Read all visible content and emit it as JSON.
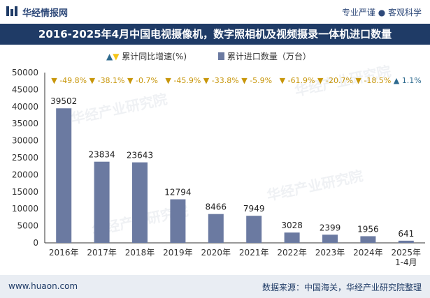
{
  "header": {
    "brand": "华经情报网",
    "slogan": "专业严谨 ● 客观科学"
  },
  "title": "2016-2025年4月中国电视摄像机，数字照相机及视频摄录一体机进口数量",
  "legend": {
    "growth_label": "累计同比增速(%)",
    "quantity_label": "累计进口数量（万台）"
  },
  "footer": {
    "website": "www.huaon.com",
    "source": "数据来源：中国海关，华经产业研究院整理"
  },
  "watermark": "华经产业研究院",
  "colors": {
    "bar": "#6b7aa1",
    "title_bg": "#1f3b66",
    "down_marker": "#f5c518",
    "up_marker": "#2f6b8f",
    "growth_text": "#c8960a",
    "up_text": "#2f6b8f"
  },
  "chart_data": {
    "type": "bar",
    "categories": [
      "2016年",
      "2017年",
      "2018年",
      "2019年",
      "2020年",
      "2021年",
      "2022年",
      "2023年",
      "2024年",
      "2025年\n1-4月"
    ],
    "series": [
      {
        "name": "累计进口数量（万台）",
        "values": [
          39502,
          23834,
          23643,
          12794,
          8466,
          7949,
          3028,
          2399,
          1956,
          641
        ]
      },
      {
        "name": "累计同比增速(%)",
        "values": [
          -49.8,
          -38.1,
          -0.7,
          -45.9,
          -33.8,
          -5.9,
          -61.9,
          -20.7,
          -18.5,
          1.1
        ]
      }
    ],
    "yticks": [
      0,
      5000,
      10000,
      15000,
      20000,
      25000,
      30000,
      35000,
      40000,
      45000,
      50000
    ],
    "ylim": [
      0,
      50000
    ],
    "growth_labels": [
      "-49.8%",
      "-38.1%",
      "-0.7%",
      "-45.9%",
      "-33.8%",
      "-5.9%",
      "-61.9%",
      "-20.7%",
      "-18.5%",
      "1.1%"
    ],
    "grid": false,
    "legend_position": "top-center"
  }
}
